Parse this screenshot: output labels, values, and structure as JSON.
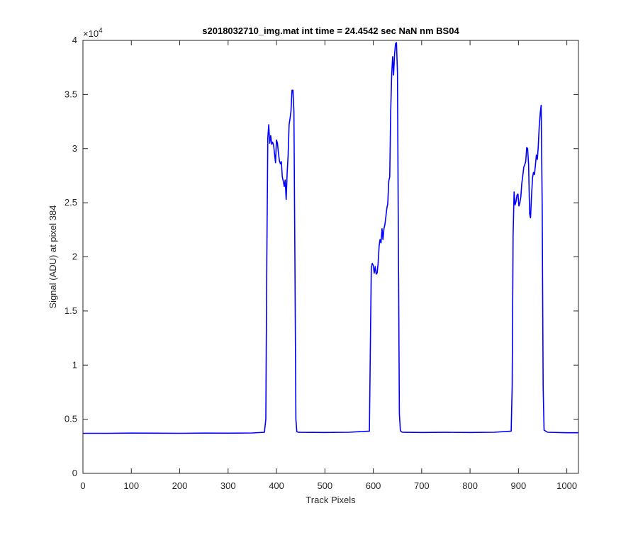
{
  "chart_data": {
    "type": "line",
    "title": "s2018032710_img.mat int time = 24.4542 sec  NaN nm BS04",
    "xlabel": "Track Pixels",
    "ylabel": "Signal (ADU) at pixel 384",
    "xlim": [
      0,
      1024
    ],
    "ylim": [
      0,
      40000
    ],
    "xticks": [
      0,
      100,
      200,
      300,
      400,
      500,
      600,
      700,
      800,
      900,
      1000
    ],
    "xtick_labels": [
      "0",
      "100",
      "200",
      "300",
      "400",
      "500",
      "600",
      "700",
      "800",
      "900",
      "1000"
    ],
    "yticks": [
      0,
      5000,
      10000,
      15000,
      20000,
      25000,
      30000,
      35000,
      40000
    ],
    "ytick_labels": [
      "0",
      "0.5",
      "1",
      "1.5",
      "2",
      "2.5",
      "3",
      "3.5",
      "4"
    ],
    "y_exponent_base": "×10",
    "y_exponent_power": "4",
    "grid": false,
    "series": [
      {
        "color": "#0000ff",
        "x": [
          0,
          50,
          100,
          150,
          200,
          250,
          300,
          350,
          375,
          378,
          380,
          382,
          384,
          386,
          388,
          390,
          392,
          394,
          396,
          398,
          400,
          402,
          404,
          406,
          408,
          410,
          412,
          414,
          416,
          418,
          420,
          422,
          424,
          426,
          428,
          430,
          432,
          434,
          436,
          438,
          440,
          442,
          445,
          450,
          500,
          550,
          592,
          594,
          596,
          598,
          600,
          602,
          604,
          606,
          608,
          610,
          612,
          614,
          616,
          618,
          620,
          622,
          624,
          626,
          628,
          630,
          632,
          634,
          636,
          638,
          640,
          642,
          644,
          646,
          648,
          650,
          652,
          654,
          656,
          658,
          660,
          665,
          700,
          750,
          800,
          850,
          885,
          887,
          889,
          891,
          893,
          895,
          897,
          899,
          901,
          903,
          905,
          907,
          909,
          911,
          913,
          915,
          917,
          919,
          921,
          923,
          925,
          927,
          929,
          931,
          933,
          935,
          937,
          939,
          941,
          943,
          945,
          947,
          949,
          951,
          953,
          960,
          1000,
          1024
        ],
        "y": [
          3700,
          3700,
          3720,
          3710,
          3700,
          3720,
          3710,
          3730,
          3800,
          5000,
          20000,
          31000,
          32200,
          30500,
          31200,
          30400,
          30600,
          30300,
          29500,
          28700,
          30800,
          30500,
          29600,
          28900,
          28600,
          28800,
          27400,
          27000,
          26500,
          27100,
          25300,
          27800,
          29300,
          32200,
          32800,
          33500,
          35400,
          35400,
          33400,
          20000,
          5000,
          3850,
          3800,
          3790,
          3780,
          3800,
          3900,
          12000,
          19000,
          19400,
          19200,
          18500,
          19100,
          18400,
          18500,
          19400,
          21000,
          21600,
          21300,
          22600,
          21600,
          22600,
          23000,
          23700,
          24500,
          24900,
          27000,
          27400,
          33300,
          36800,
          38500,
          36800,
          38700,
          39700,
          39800,
          37000,
          20000,
          5500,
          3950,
          3850,
          3800,
          3790,
          3780,
          3790,
          3780,
          3800,
          3900,
          8000,
          22000,
          26000,
          24800,
          25100,
          25700,
          25800,
          24700,
          25000,
          25600,
          26800,
          27500,
          28300,
          28500,
          28800,
          30100,
          30000,
          28500,
          24000,
          23600,
          25600,
          27300,
          27800,
          27600,
          28400,
          29400,
          29000,
          30200,
          32100,
          33300,
          34000,
          25000,
          8000,
          4000,
          3800,
          3750,
          3750
        ]
      }
    ]
  }
}
